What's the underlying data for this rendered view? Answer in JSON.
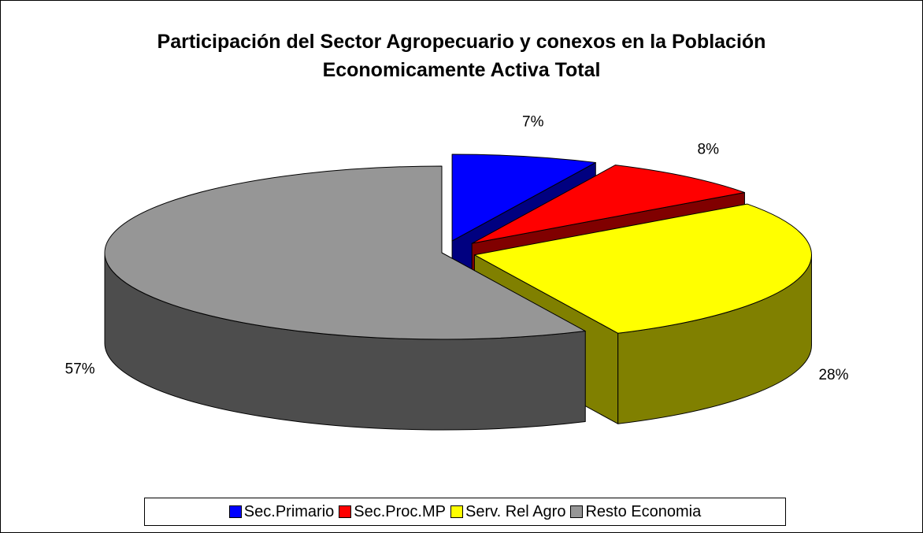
{
  "chart_data": {
    "type": "pie3d",
    "title": "Participación del Sector Agropecuario y conexos en la Población Economicamente Activa Total",
    "categories": [
      "Sec.Primario",
      "Sec.Proc.MP",
      "Serv. Rel Agro",
      "Resto Economia"
    ],
    "values": [
      7,
      8,
      28,
      57
    ],
    "value_labels": [
      "7%",
      "8%",
      "28%",
      "57%"
    ],
    "colors": [
      "#0000ff",
      "#ff0000",
      "#ffff00",
      "#969696"
    ],
    "side_colors": [
      "#000080",
      "#800000",
      "#808000",
      "#4d4d4d"
    ],
    "legend": "bottom"
  }
}
